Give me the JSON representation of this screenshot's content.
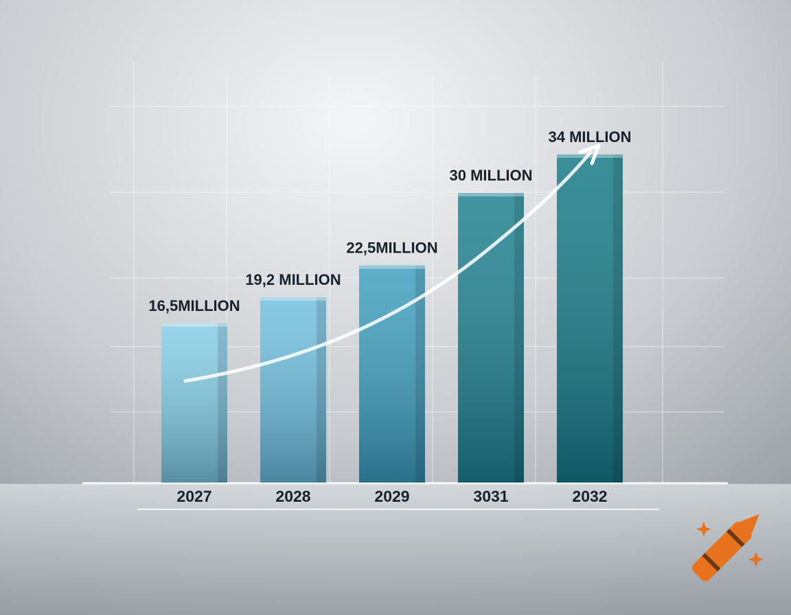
{
  "chart_data": {
    "type": "bar",
    "categories": [
      "2027",
      "2028",
      "2029",
      "3031",
      "2032"
    ],
    "values": [
      16.5,
      19.2,
      22.5,
      30,
      34
    ],
    "value_labels": [
      "16,5MILLION",
      "19,2 MILLION",
      "22,5MILLION",
      "30 MILLION",
      "34 MILLION"
    ],
    "colors": [
      "#86cde6",
      "#72c0df",
      "#3f9fbe",
      "#1f8190",
      "#167a86"
    ]
  }
}
